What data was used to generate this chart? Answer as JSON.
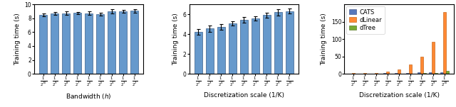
{
  "chart1": {
    "xlabel": "Bandwidth ($h$)",
    "ylabel": "Training time (s)",
    "xlabels": [
      "$\\frac{1}{2^{10}}$",
      "$\\frac{1}{2^{9}}$",
      "$\\frac{1}{2^{8}}$",
      "$\\frac{1}{2^{7}}$",
      "$\\frac{1}{2^{6}}$",
      "$\\frac{1}{2^{5}}$",
      "$\\frac{1}{2^{4}}$",
      "$\\frac{1}{2^{3}}$",
      "$\\frac{1}{2^{2}}$"
    ],
    "values": [
      8.45,
      8.65,
      8.72,
      8.75,
      8.72,
      8.55,
      8.97,
      9.0,
      9.05
    ],
    "errors": [
      0.22,
      0.22,
      0.28,
      0.18,
      0.28,
      0.22,
      0.3,
      0.18,
      0.28
    ],
    "ylim": [
      0,
      10
    ],
    "yticks": [
      0,
      2,
      4,
      6,
      8,
      10
    ],
    "bar_color": "#6699cc",
    "edge_color": "#3a5f8a"
  },
  "chart2": {
    "xlabel": "Discretization scale (1/K)",
    "ylabel": "Training time (s)",
    "xlabels": [
      "$\\frac{1}{2^{2}}$",
      "$\\frac{1}{2^{3}}$",
      "$\\frac{1}{2^{4}}$",
      "$\\frac{1}{2^{5}}$",
      "$\\frac{1}{2^{6}}$",
      "$\\frac{1}{2^{7}}$",
      "$\\frac{1}{2^{8}}$",
      "$\\frac{1}{2^{9}}$",
      "$\\frac{1}{2^{10}}$"
    ],
    "values": [
      4.2,
      4.55,
      4.7,
      5.05,
      5.45,
      5.55,
      5.9,
      6.2,
      6.32
    ],
    "errors": [
      0.28,
      0.32,
      0.28,
      0.22,
      0.28,
      0.22,
      0.22,
      0.32,
      0.22
    ],
    "ylim": [
      0,
      7
    ],
    "yticks": [
      0,
      2,
      4,
      6
    ],
    "bar_color": "#6699cc",
    "edge_color": "#3a5f8a"
  },
  "chart3": {
    "xlabel": "Discretization scale (1/K)",
    "ylabel": "Training time (s)",
    "xlabels": [
      "$\\frac{1}{2^{2}}$",
      "$\\frac{1}{2^{3}}$",
      "$\\frac{1}{2^{4}}$",
      "$\\frac{1}{2^{5}}$",
      "$\\frac{1}{2^{6}}$",
      "$\\frac{1}{2^{7}}$",
      "$\\frac{1}{2^{8}}$",
      "$\\frac{1}{2^{9}}$",
      "$\\frac{1}{2^{10}}$"
    ],
    "cats_values": [
      1.2,
      1.3,
      1.4,
      2.0,
      2.8,
      3.2,
      3.8,
      4.5,
      5.2
    ],
    "dlinear_values": [
      2.2,
      2.5,
      3.0,
      5.5,
      12.5,
      27.0,
      48.5,
      93.0,
      178.0
    ],
    "dtree_values": [
      0.5,
      0.6,
      0.7,
      0.9,
      1.1,
      1.3,
      1.6,
      2.2,
      8.5
    ],
    "ylim": [
      0,
      200
    ],
    "yticks": [
      0,
      50,
      100,
      150
    ],
    "cats_color": "#5577bb",
    "dlinear_color": "#ff8833",
    "dtree_color": "#77aa33",
    "cats_edge": "#334477",
    "dlinear_edge": "#bb5500",
    "dtree_edge": "#446611",
    "legend_labels": [
      "CATS",
      "dLinear",
      "dTree"
    ]
  },
  "tick_fontsize": 5.5,
  "label_fontsize": 6.5,
  "legend_fontsize": 6.0
}
